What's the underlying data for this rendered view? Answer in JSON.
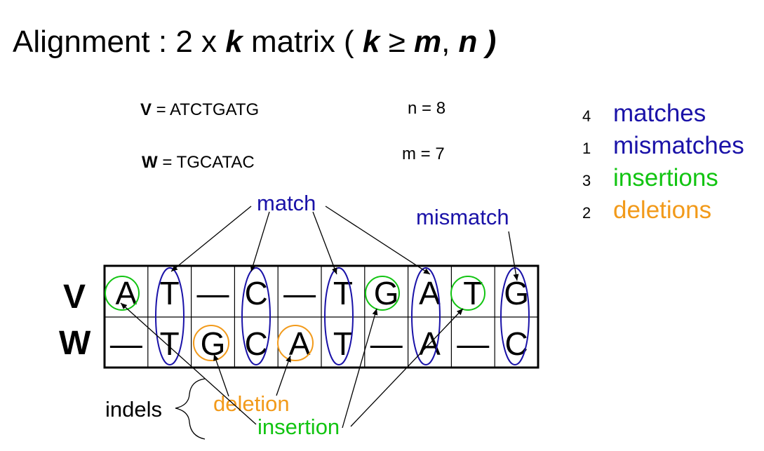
{
  "title": {
    "prefix": "Alignment :  2 x ",
    "k1": "k",
    "middle": " matrix ( ",
    "k2": "k",
    "geq": " ≥ ",
    "m": "m",
    "comma": ", ",
    "n": "n",
    "close": " )"
  },
  "sequences": {
    "v_name": "V",
    "v_eq": "  = ATCTGATG",
    "w_name": "W",
    "w_eq": " = TGCATAC",
    "n_text": "n = 8",
    "m_text": "m = 7"
  },
  "stats": [
    {
      "count": "4",
      "label": "matches",
      "color": "#1a12a8"
    },
    {
      "count": "1",
      "label": "mismatches",
      "color": "#1a12a8"
    },
    {
      "count": "3",
      "label": "insertions",
      "color": "#12c412"
    },
    {
      "count": "2",
      "label": "deletions",
      "color": "#f29a1a"
    }
  ],
  "alignment": {
    "row_labels": [
      "V",
      "W"
    ],
    "v_row": [
      "A",
      "T",
      "—",
      "C",
      "—",
      "T",
      "G",
      "A",
      "T",
      "G"
    ],
    "w_row": [
      "—",
      "T",
      "G",
      "C",
      "A",
      "T",
      "—",
      "A",
      "—",
      "C"
    ]
  },
  "callouts": {
    "match": "match",
    "mismatch": "mismatch",
    "indels": "indels",
    "deletion": "deletion",
    "insertion": "insertion"
  },
  "colors": {
    "match": "#1a12a8",
    "insertion": "#12c412",
    "deletion": "#f29a1a"
  }
}
